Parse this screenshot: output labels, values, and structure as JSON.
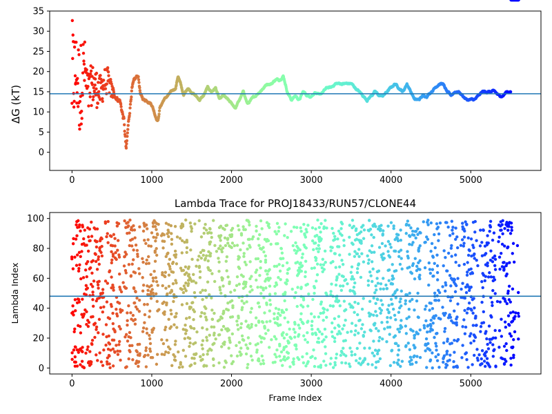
{
  "chart_data": [
    {
      "type": "scatter",
      "title": "",
      "xlabel": "",
      "ylabel": "ΔG (kT)",
      "xlim": [
        -280,
        5880
      ],
      "ylim": [
        -4.5,
        35
      ],
      "xticks": [
        0,
        1000,
        2000,
        3000,
        4000,
        5000
      ],
      "yticks": [
        0,
        5,
        10,
        15,
        20,
        25,
        30,
        35
      ],
      "hline": 14.5,
      "hline_color": "#1f77b4",
      "colormap": "rainbow (red at early frames → violet at late frames)",
      "grid": false,
      "trace_profile": {
        "x": [
          0,
          50,
          100,
          150,
          200,
          250,
          300,
          350,
          400,
          450,
          500,
          550,
          600,
          650,
          680,
          700,
          750,
          800,
          830,
          860,
          900,
          950,
          1000,
          1050,
          1080,
          1100,
          1150,
          1200,
          1250,
          1300,
          1330,
          1360,
          1400,
          1450,
          1500,
          1550,
          1600,
          1650,
          1700,
          1750,
          1800,
          1850,
          1900,
          1950,
          2000,
          2050,
          2100,
          2150,
          2200,
          2250,
          2300,
          2350,
          2400,
          2450,
          2500,
          2550,
          2600,
          2650,
          2700,
          2750,
          2800,
          2850,
          2900,
          2950,
          3000,
          3050,
          3100,
          3150,
          3200,
          3250,
          3300,
          3350,
          3400,
          3450,
          3500,
          3550,
          3600,
          3650,
          3700,
          3750,
          3800,
          3850,
          3900,
          3950,
          4000,
          4050,
          4100,
          4150,
          4200,
          4250,
          4300,
          4350,
          4400,
          4450,
          4500,
          4550,
          4600,
          4650,
          4700,
          4750,
          4800,
          4850,
          4900,
          4950,
          5000,
          5050,
          5100,
          5150,
          5200,
          5250,
          5300,
          5350,
          5400,
          5450,
          5500,
          5550,
          5600
        ],
        "y": [
          18,
          20,
          15,
          22,
          14,
          17,
          16,
          15,
          17,
          18,
          15,
          14,
          13,
          8,
          0,
          5,
          16,
          18,
          19,
          14,
          13,
          13,
          12,
          9,
          8,
          11,
          13,
          14,
          15,
          16,
          19,
          17,
          14,
          16,
          15,
          14,
          13,
          14,
          16,
          15,
          16,
          13,
          14,
          13,
          12,
          11,
          13,
          15,
          12,
          13,
          14,
          15,
          16,
          17,
          17,
          18,
          18,
          19,
          15,
          13,
          14,
          13,
          15,
          14,
          14,
          15,
          14,
          15,
          16,
          16,
          17,
          17,
          17,
          17,
          17,
          16,
          15,
          14,
          13,
          14,
          15,
          14,
          14,
          15,
          16,
          17,
          16,
          15,
          17,
          15,
          13,
          13,
          14,
          14,
          15,
          16,
          17,
          17,
          15,
          14,
          15,
          15,
          14,
          13,
          13,
          13,
          14,
          15,
          15,
          15,
          15,
          14,
          14,
          15,
          15,
          15,
          15
        ],
        "spread": [
          15,
          10,
          12,
          8,
          6,
          5,
          5,
          4,
          4,
          3,
          2,
          1.5,
          1.5,
          2.5,
          2.5,
          2,
          1.5,
          1.2,
          1,
          1,
          0.8,
          0.8,
          0.8,
          0.8,
          0.8,
          0.6,
          0.5,
          0.5,
          0.5,
          0.5,
          0.5,
          0.5,
          0.5,
          0.5,
          0.5,
          0.5,
          0.5,
          0.5,
          0.5,
          0.5,
          0.5,
          0.5,
          0.5,
          0.5,
          0.5,
          0.5,
          0.5,
          0.5,
          0.5,
          0.5,
          0.5,
          0.5,
          0.5,
          0.5,
          0.5,
          0.5,
          0.5,
          0.5,
          0.5,
          0.5,
          0.5,
          0.5,
          0.5,
          0.5,
          0.5,
          0.5,
          0.5,
          0.5,
          0.5,
          0.5,
          0.5,
          0.5,
          0.5,
          0.5,
          0.5,
          0.5,
          0.5,
          0.5,
          0.5,
          0.5,
          0.5,
          0.5,
          0.5,
          0.5,
          0.5,
          0.5,
          0.5,
          0.5,
          0.5,
          0.5,
          0.5,
          0.5,
          0.5,
          0.5,
          0.5,
          0.5,
          0.5,
          0.5,
          0.5,
          0.5,
          0.5,
          0.5,
          0.5,
          0.5,
          0.5,
          0.5,
          0.5,
          0.5,
          0.5,
          0.5,
          0.5,
          0.5,
          0.5,
          0.5,
          0.5
        ]
      }
    },
    {
      "type": "scatter",
      "title": "Lambda Trace for PROJ18433/RUN57/CLONE44",
      "xlabel": "Frame Index",
      "ylabel": "Lambda Index",
      "xlim": [
        -280,
        5880
      ],
      "ylim": [
        -4,
        104
      ],
      "xticks": [
        0,
        1000,
        2000,
        3000,
        4000,
        5000
      ],
      "yticks": [
        0,
        20,
        40,
        60,
        80,
        100
      ],
      "hline": 48,
      "hline_color": "#1f77b4",
      "colormap": "rainbow (red at early frames → violet at late frames)",
      "grid": false,
      "x_range": [
        0,
        5600
      ],
      "y_range": [
        0,
        99
      ],
      "band_period": 235
    }
  ]
}
